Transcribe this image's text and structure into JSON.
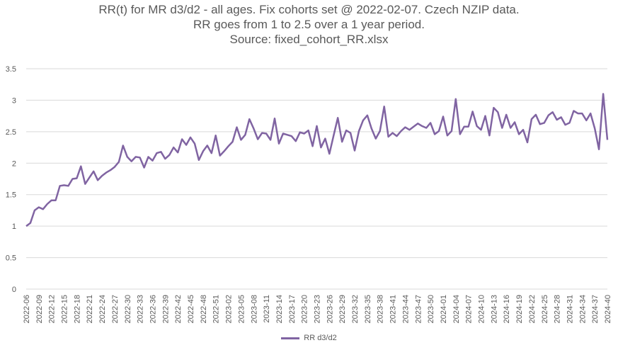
{
  "chart_data": {
    "type": "line",
    "title_lines": [
      "RR(t) for MR d3/d2 - all ages. Fix cohorts set @ 2022-02-07. Czech NZIP data.",
      "RR goes from 1 to 2.5 over a 1 year period.",
      "Source: fixed_cohort_RR.xlsx"
    ],
    "xlabel": "",
    "ylabel": "",
    "ylim": [
      0,
      3.5
    ],
    "yticks": [
      "0",
      "0.5",
      "1",
      "1.5",
      "2",
      "2.5",
      "3",
      "3.5"
    ],
    "xtick_labels": [
      "2022-06",
      "2022-09",
      "2022-12",
      "2022-15",
      "2022-18",
      "2022-21",
      "2022-24",
      "2022-27",
      "2022-30",
      "2022-33",
      "2022-36",
      "2022-39",
      "2022-42",
      "2022-45",
      "2022-48",
      "2022-51",
      "2023-02",
      "2023-05",
      "2023-08",
      "2023-11",
      "2023-14",
      "2023-17",
      "2023-20",
      "2023-23",
      "2023-26",
      "2023-29",
      "2023-32",
      "2023-35",
      "2023-38",
      "2023-41",
      "2023-44",
      "2023-47",
      "2023-50",
      "2024-01",
      "2024-04",
      "2024-07",
      "2024-10",
      "2024-13",
      "2024-16",
      "2024-19",
      "2024-22",
      "2024-25",
      "2024-28",
      "2024-31",
      "2024-34",
      "2024-37",
      "2024-40"
    ],
    "grid": "horizontal",
    "legend_position": "bottom",
    "series": [
      {
        "name": "RR d3/d2",
        "color": "#8064a2",
        "values": [
          1.0,
          1.05,
          1.25,
          1.3,
          1.27,
          1.35,
          1.41,
          1.41,
          1.64,
          1.65,
          1.64,
          1.75,
          1.76,
          1.95,
          1.67,
          1.77,
          1.87,
          1.73,
          1.8,
          1.85,
          1.89,
          1.94,
          2.02,
          2.28,
          2.1,
          2.03,
          2.1,
          2.09,
          1.93,
          2.1,
          2.04,
          2.16,
          2.18,
          2.07,
          2.13,
          2.25,
          2.17,
          2.38,
          2.29,
          2.41,
          2.31,
          2.05,
          2.19,
          2.28,
          2.16,
          2.44,
          2.12,
          2.19,
          2.27,
          2.34,
          2.57,
          2.37,
          2.45,
          2.7,
          2.55,
          2.38,
          2.48,
          2.47,
          2.37,
          2.71,
          2.31,
          2.47,
          2.45,
          2.43,
          2.35,
          2.49,
          2.47,
          2.52,
          2.27,
          2.59,
          2.25,
          2.39,
          2.15,
          2.44,
          2.72,
          2.34,
          2.52,
          2.48,
          2.2,
          2.51,
          2.68,
          2.76,
          2.55,
          2.39,
          2.51,
          2.9,
          2.42,
          2.48,
          2.43,
          2.51,
          2.57,
          2.53,
          2.58,
          2.63,
          2.59,
          2.56,
          2.64,
          2.46,
          2.51,
          2.74,
          2.44,
          2.51,
          3.02,
          2.46,
          2.58,
          2.58,
          2.82,
          2.59,
          2.53,
          2.75,
          2.44,
          2.88,
          2.81,
          2.56,
          2.77,
          2.56,
          2.65,
          2.46,
          2.53,
          2.33,
          2.7,
          2.77,
          2.62,
          2.64,
          2.76,
          2.81,
          2.69,
          2.73,
          2.61,
          2.64,
          2.83,
          2.79,
          2.79,
          2.68,
          2.79,
          2.55,
          2.22,
          3.1,
          2.37
        ]
      }
    ]
  }
}
